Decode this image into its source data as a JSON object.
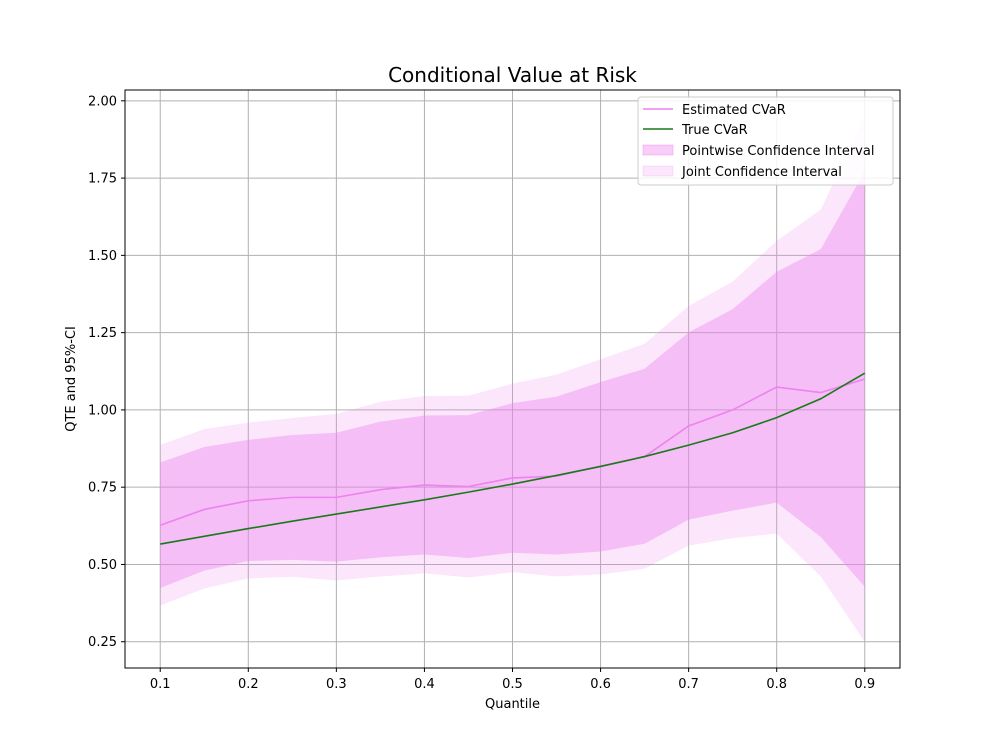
{
  "chart_data": {
    "type": "line",
    "title": "Conditional Value at Risk",
    "xlabel": "Quantile",
    "ylabel": "QTE and 95%-CI",
    "xlim": [
      0.06,
      0.94
    ],
    "ylim": [
      0.165,
      2.035
    ],
    "grid": true,
    "legend_position": "top-right",
    "x": [
      0.1,
      0.15,
      0.2,
      0.25,
      0.3,
      0.35,
      0.4,
      0.45,
      0.5,
      0.55,
      0.6,
      0.65,
      0.7,
      0.75,
      0.8,
      0.85,
      0.9
    ],
    "x_ticks": [
      0.1,
      0.2,
      0.3,
      0.4,
      0.5,
      0.6,
      0.7,
      0.8,
      0.9
    ],
    "x_tick_labels": [
      "0.1",
      "0.2",
      "0.3",
      "0.4",
      "0.5",
      "0.6",
      "0.7",
      "0.8",
      "0.9"
    ],
    "y_ticks": [
      0.25,
      0.5,
      0.75,
      1.0,
      1.25,
      1.5,
      1.75,
      2.0
    ],
    "y_tick_labels": [
      "0.25",
      "0.50",
      "0.75",
      "1.00",
      "1.25",
      "1.50",
      "1.75",
      "2.00"
    ],
    "series": [
      {
        "name": "Estimated CVaR",
        "color": "#ee82ee",
        "values": [
          0.627,
          0.678,
          0.706,
          0.717,
          0.717,
          0.742,
          0.757,
          0.752,
          0.78,
          0.786,
          0.818,
          0.849,
          0.948,
          1.0,
          1.074,
          1.056,
          1.1
        ]
      },
      {
        "name": "True CVaR",
        "color": "#1a7a1a",
        "values": [
          0.566,
          0.591,
          0.616,
          0.64,
          0.663,
          0.686,
          0.709,
          0.734,
          0.76,
          0.788,
          0.817,
          0.849,
          0.886,
          0.926,
          0.975,
          1.036,
          1.119
        ]
      }
    ],
    "bands": [
      {
        "name": "Pointwise Confidence Interval",
        "color": "#ee82ee",
        "opacity": 0.4,
        "lower": [
          0.424,
          0.48,
          0.511,
          0.515,
          0.509,
          0.523,
          0.532,
          0.521,
          0.538,
          0.532,
          0.542,
          0.567,
          0.645,
          0.674,
          0.7,
          0.589,
          0.428
        ],
        "upper": [
          0.83,
          0.88,
          0.903,
          0.919,
          0.926,
          0.962,
          0.982,
          0.983,
          1.022,
          1.043,
          1.09,
          1.133,
          1.251,
          1.326,
          1.447,
          1.52,
          1.772
        ]
      },
      {
        "name": "Joint Confidence Interval",
        "color": "#ee82ee",
        "opacity": 0.2,
        "lower": [
          0.367,
          0.422,
          0.455,
          0.46,
          0.448,
          0.461,
          0.471,
          0.458,
          0.475,
          0.461,
          0.468,
          0.486,
          0.561,
          0.585,
          0.6,
          0.461,
          0.25
        ],
        "upper": [
          0.887,
          0.938,
          0.959,
          0.974,
          0.987,
          1.026,
          1.045,
          1.046,
          1.085,
          1.114,
          1.164,
          1.214,
          1.336,
          1.415,
          1.547,
          1.648,
          1.95
        ]
      }
    ],
    "legend": [
      "Estimated CVaR",
      "True CVaR",
      "Pointwise Confidence Interval",
      "Joint Confidence Interval"
    ]
  }
}
